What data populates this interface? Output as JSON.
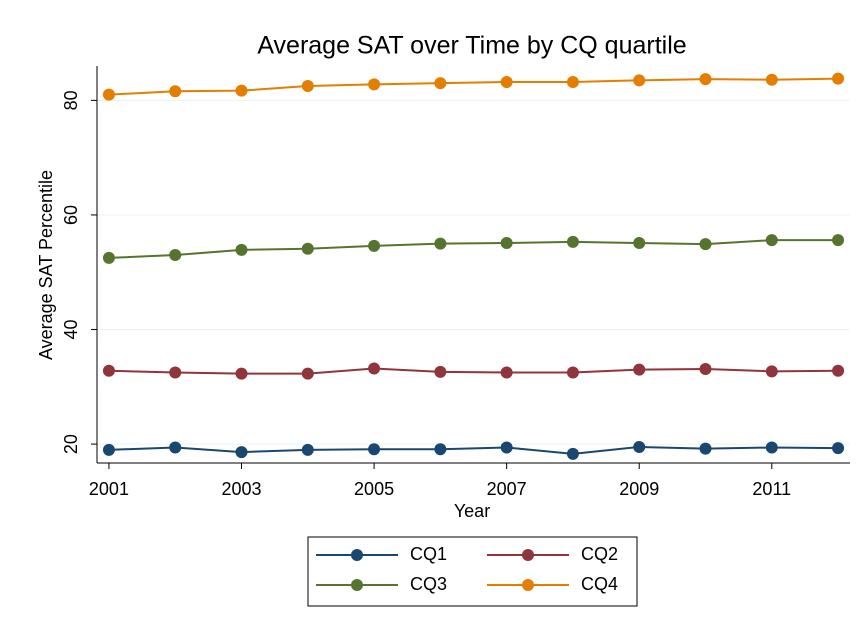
{
  "chart_data": {
    "type": "line",
    "title": "Average SAT over Time by CQ quartile",
    "x_label": "Year",
    "y_label": "Average SAT Percentile",
    "x": [
      2001,
      2002,
      2003,
      2004,
      2005,
      2006,
      2007,
      2008,
      2009,
      2010,
      2011,
      2012
    ],
    "series": [
      {
        "name": "CQ1",
        "color": "#1a476f",
        "values": [
          19.0,
          19.4,
          18.6,
          19.0,
          19.1,
          19.1,
          19.4,
          18.3,
          19.5,
          19.2,
          19.4,
          19.3
        ]
      },
      {
        "name": "CQ2",
        "color": "#90353b",
        "values": [
          32.8,
          32.5,
          32.3,
          32.3,
          33.2,
          32.6,
          32.5,
          32.5,
          33.0,
          33.1,
          32.7,
          32.8
        ]
      },
      {
        "name": "CQ3",
        "color": "#55752f",
        "values": [
          52.5,
          53.0,
          53.9,
          54.1,
          54.6,
          55.0,
          55.1,
          55.3,
          55.1,
          54.9,
          55.6,
          55.6
        ]
      },
      {
        "name": "CQ4",
        "color": "#e37e00",
        "values": [
          81.0,
          81.6,
          81.7,
          82.5,
          82.8,
          83.0,
          83.2,
          83.2,
          83.5,
          83.7,
          83.6,
          83.8
        ]
      }
    ],
    "xlim": [
      2000.82,
      2012.18
    ],
    "ylim": [
      16.7,
      86
    ],
    "xticks": [
      2001,
      2003,
      2005,
      2007,
      2009,
      2011
    ],
    "yticks": [
      20,
      40,
      60,
      80
    ],
    "grid": true,
    "legend": "bottom"
  }
}
